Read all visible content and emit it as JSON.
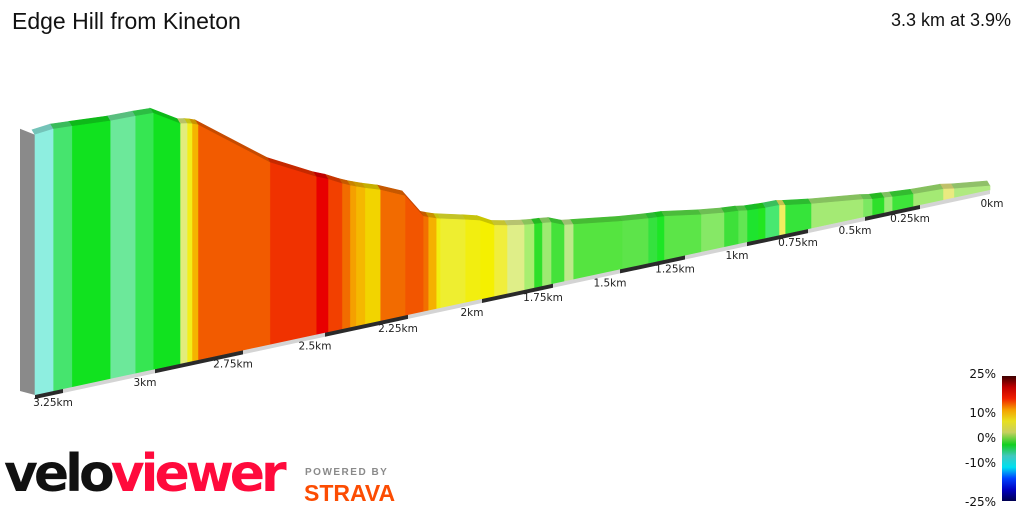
{
  "header": {
    "title": "Edge Hill from Kineton",
    "summary": "3.3 km at 3.9%"
  },
  "chart_data": {
    "type": "area",
    "title": "Edge Hill from Kineton",
    "subtitle": "3.3 km at 3.9%",
    "distance_km": 3.3,
    "average_gradient_percent": 3.9,
    "x_direction": "right-to-left",
    "x_ticks": [
      "0km",
      "0.25km",
      "0.5km",
      "0.75km",
      "1km",
      "1.25km",
      "1.5km",
      "1.75km",
      "2km",
      "2.25km",
      "2.5km",
      "2.75km",
      "3km",
      "3.25km"
    ],
    "x_tick_values": [
      0,
      0.25,
      0.5,
      0.75,
      1,
      1.25,
      1.5,
      1.75,
      2,
      2.25,
      2.5,
      2.75,
      3,
      3.25
    ],
    "segments": [
      {
        "km": [
          3.326,
          3.277
        ],
        "grade": -2,
        "color": "#8eeee0"
      },
      {
        "km": [
          3.277,
          3.226
        ],
        "grade": 1,
        "color": "#46e46e"
      },
      {
        "km": [
          3.226,
          3.122
        ],
        "grade": 1.5,
        "color": "#11e21f"
      },
      {
        "km": [
          3.122,
          3.054
        ],
        "grade": 0.5,
        "color": "#6ce89a"
      },
      {
        "km": [
          3.054,
          3.005
        ],
        "grade": 1,
        "color": "#36e652"
      },
      {
        "km": [
          3.005,
          2.929
        ],
        "grade": 1.5,
        "color": "#11e21f"
      },
      {
        "km": [
          2.929,
          2.909
        ],
        "grade": 4,
        "color": "#e2ec7c"
      },
      {
        "km": [
          2.909,
          2.895
        ],
        "grade": 6,
        "color": "#f2ee1a"
      },
      {
        "km": [
          2.895,
          2.878
        ],
        "grade": 8,
        "color": "#f5b400"
      },
      {
        "km": [
          2.878,
          2.668
        ],
        "grade": 10,
        "color": "#f25b00"
      },
      {
        "km": [
          2.668,
          2.527
        ],
        "grade": 11,
        "color": "#f03200"
      },
      {
        "km": [
          2.527,
          2.491
        ],
        "grade": 13,
        "color": "#e80000"
      },
      {
        "km": [
          2.491,
          2.449
        ],
        "grade": 11,
        "color": "#f24000"
      },
      {
        "km": [
          2.449,
          2.425
        ],
        "grade": 9.5,
        "color": "#f26c00"
      },
      {
        "km": [
          2.425,
          2.407
        ],
        "grade": 8.5,
        "color": "#f5a000"
      },
      {
        "km": [
          2.407,
          2.38
        ],
        "grade": 8,
        "color": "#f5b800"
      },
      {
        "km": [
          2.38,
          2.334
        ],
        "grade": 7,
        "color": "#f2d400"
      },
      {
        "km": [
          2.334,
          2.259
        ],
        "grade": 9.5,
        "color": "#f26b00"
      },
      {
        "km": [
          2.259,
          2.199
        ],
        "grade": 10,
        "color": "#f25500"
      },
      {
        "km": [
          2.199,
          2.182
        ],
        "grade": 9,
        "color": "#f27000"
      },
      {
        "km": [
          2.182,
          2.155
        ],
        "grade": 8,
        "color": "#f5b000"
      },
      {
        "km": [
          2.155,
          2.142
        ],
        "grade": 6,
        "color": "#f2ee10"
      },
      {
        "km": [
          2.142,
          2.057
        ],
        "grade": 5.5,
        "color": "#eeee30"
      },
      {
        "km": [
          2.057,
          2.007
        ],
        "grade": 6,
        "color": "#f2ee10"
      },
      {
        "km": [
          2.007,
          1.958
        ],
        "grade": 6,
        "color": "#f5f000"
      },
      {
        "km": [
          1.958,
          1.912
        ],
        "grade": 5,
        "color": "#f0ee3c"
      },
      {
        "km": [
          1.912,
          1.852
        ],
        "grade": 4,
        "color": "#dfee88"
      },
      {
        "km": [
          1.852,
          1.817
        ],
        "grade": 3,
        "color": "#a8ee70"
      },
      {
        "km": [
          1.817,
          1.789
        ],
        "grade": 2,
        "color": "#2ee02a"
      },
      {
        "km": [
          1.789,
          1.757
        ],
        "grade": 3,
        "color": "#9eea72"
      },
      {
        "km": [
          1.757,
          1.709
        ],
        "grade": 2,
        "color": "#44e23a"
      },
      {
        "km": [
          1.709,
          1.675
        ],
        "grade": 3.5,
        "color": "#bde98a"
      },
      {
        "km": [
          1.675,
          1.492
        ],
        "grade": 2.5,
        "color": "#55e440"
      },
      {
        "km": [
          1.492,
          1.392
        ],
        "grade": 2.5,
        "color": "#5de44a"
      },
      {
        "km": [
          1.392,
          1.358
        ],
        "grade": 2,
        "color": "#34e23e"
      },
      {
        "km": [
          1.358,
          1.331
        ],
        "grade": 1.5,
        "color": "#1de625"
      },
      {
        "km": [
          1.331,
          1.186
        ],
        "grade": 2.5,
        "color": "#5ce548"
      },
      {
        "km": [
          1.186,
          1.093
        ],
        "grade": 3,
        "color": "#86e866"
      },
      {
        "km": [
          1.093,
          1.036
        ],
        "grade": 2,
        "color": "#3ee03a"
      },
      {
        "km": [
          1.036,
          1.0
        ],
        "grade": 2.5,
        "color": "#62e653"
      },
      {
        "km": [
          1.0,
          0.955
        ],
        "grade": 1.5,
        "color": "#1ee42e"
      },
      {
        "km": [
          0.955,
          0.926
        ],
        "grade": 1.5,
        "color": "#22e620"
      },
      {
        "km": [
          0.926,
          0.869
        ],
        "grade": 0.5,
        "color": "#48e870"
      },
      {
        "km": [
          0.869,
          0.844
        ],
        "grade": 5,
        "color": "#f0ee60"
      },
      {
        "km": [
          0.844,
          0.737
        ],
        "grade": 2,
        "color": "#36e43a"
      },
      {
        "km": [
          0.737,
          0.509
        ],
        "grade": 3,
        "color": "#a4ea74"
      },
      {
        "km": [
          0.509,
          0.468
        ],
        "grade": 3,
        "color": "#7ce862"
      },
      {
        "km": [
          0.468,
          0.414
        ],
        "grade": 2,
        "color": "#2ee02a"
      },
      {
        "km": [
          0.414,
          0.377
        ],
        "grade": 3,
        "color": "#9cea78"
      },
      {
        "km": [
          0.377,
          0.282
        ],
        "grade": 2,
        "color": "#3ee43a"
      },
      {
        "km": [
          0.282,
          0.168
        ],
        "grade": 3,
        "color": "#a4ea74"
      },
      {
        "km": [
          0.168,
          0.129
        ],
        "grade": 4,
        "color": "#eaea80"
      },
      {
        "km": [
          0.129,
          0.0
        ],
        "grade": 3,
        "color": "#b0ea80"
      }
    ],
    "legend": {
      "labels": [
        "25%",
        "10%",
        "0%",
        "-10%",
        "-25%"
      ],
      "colors": [
        "#3c0000",
        "#c00000",
        "#f02000",
        "#f5a000",
        "#e8e020",
        "#c8d060",
        "#10d020",
        "#40c8c0",
        "#00e0f0",
        "#0040ff",
        "#0000c0",
        "#000050"
      ]
    }
  },
  "branding": {
    "logo_velo": "velo",
    "logo_viewer": "viewer",
    "powered_by": "POWERED BY",
    "strava": "STRAVA",
    "colors": {
      "velo": "#111111",
      "viewer": "#ff0a3c",
      "strava": "#fc4c02"
    }
  }
}
